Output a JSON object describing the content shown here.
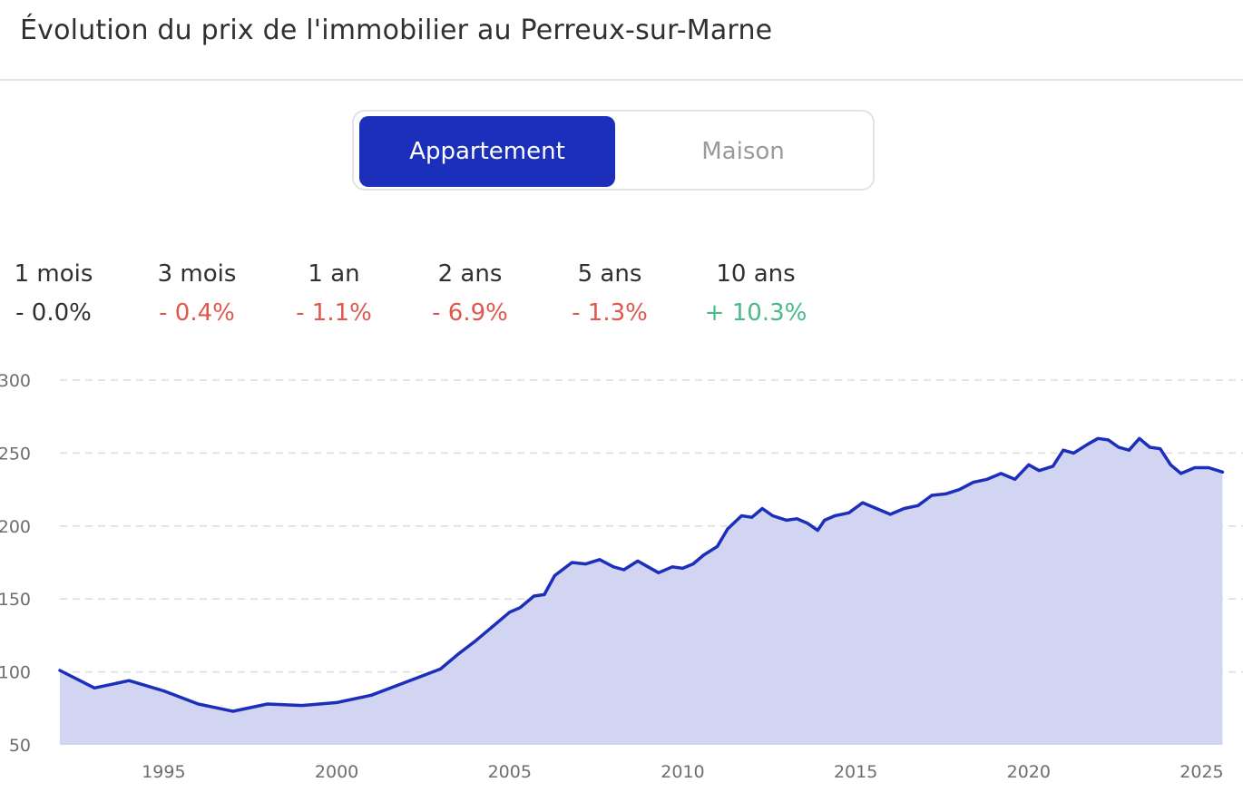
{
  "header": {
    "title": "Évolution du prix de l'immobilier au Perreux-sur-Marne"
  },
  "toggle": {
    "active_label": "Appartement",
    "inactive_label": "Maison"
  },
  "stats": [
    {
      "label": "1 mois",
      "value": "- 0.0%",
      "trend": "neutral"
    },
    {
      "label": "3 mois",
      "value": "- 0.4%",
      "trend": "negative"
    },
    {
      "label": "1 an",
      "value": "- 1.1%",
      "trend": "negative"
    },
    {
      "label": "2 ans",
      "value": "- 6.9%",
      "trend": "negative"
    },
    {
      "label": "5 ans",
      "value": "- 1.3%",
      "trend": "negative"
    },
    {
      "label": "10 ans",
      "value": "+ 10.3%",
      "trend": "positive"
    }
  ],
  "colors": {
    "accent": "#1b2fbb",
    "area_fill": "#d1d5f1",
    "negative": "#e0574d",
    "positive": "#49b98a",
    "grid": "#dcdcdf"
  },
  "chart_data": {
    "type": "area",
    "title": "",
    "xlabel": "",
    "ylabel": "",
    "xlim": [
      1992,
      2025.8
    ],
    "ylim": [
      50,
      300
    ],
    "y_ticks": [
      "300",
      "250",
      "200",
      "150",
      "100",
      "50"
    ],
    "x_ticks": [
      "1995",
      "2000",
      "2005",
      "2010",
      "2015",
      "2020",
      "2025"
    ],
    "grid": true,
    "legend": "none",
    "series": [
      {
        "x": [
          1992.0,
          1993.0,
          1994.0,
          1995.0,
          1996.0,
          1997.0,
          1998.0,
          1999.0,
          2000.0,
          2001.0,
          2002.0,
          2003.0,
          2003.5,
          2004.0,
          2004.5,
          2005.0,
          2005.3,
          2005.7,
          2006.0,
          2006.3,
          2006.8,
          2007.2,
          2007.6,
          2008.0,
          2008.3,
          2008.7,
          2009.0,
          2009.3,
          2009.7,
          2010.0,
          2010.3,
          2010.6,
          2011.0,
          2011.3,
          2011.7,
          2012.0,
          2012.3,
          2012.6,
          2013.0,
          2013.3,
          2013.6,
          2013.9,
          2014.1,
          2014.4,
          2014.8,
          2015.2,
          2015.6,
          2016.0,
          2016.4,
          2016.8,
          2017.2,
          2017.6,
          2018.0,
          2018.4,
          2018.8,
          2019.2,
          2019.6,
          2020.0,
          2020.3,
          2020.7,
          2021.0,
          2021.3,
          2021.7,
          2022.0,
          2022.3,
          2022.6,
          2022.9,
          2023.2,
          2023.5,
          2023.8,
          2024.1,
          2024.4,
          2024.8,
          2025.2,
          2025.6
        ],
        "y": [
          101,
          89,
          94,
          87,
          78,
          73,
          78,
          77,
          79,
          84,
          93,
          102,
          112,
          121,
          131,
          141,
          144,
          152,
          153,
          166,
          175,
          174,
          177,
          172,
          170,
          176,
          172,
          168,
          172,
          171,
          174,
          180,
          186,
          198,
          207,
          206,
          212,
          207,
          204,
          205,
          202,
          197,
          204,
          207,
          209,
          216,
          212,
          208,
          212,
          214,
          221,
          222,
          225,
          230,
          232,
          236,
          232,
          242,
          238,
          241,
          252,
          250,
          256,
          260,
          259,
          254,
          252,
          260,
          254,
          253,
          242,
          236,
          240,
          240,
          237
        ]
      }
    ]
  }
}
